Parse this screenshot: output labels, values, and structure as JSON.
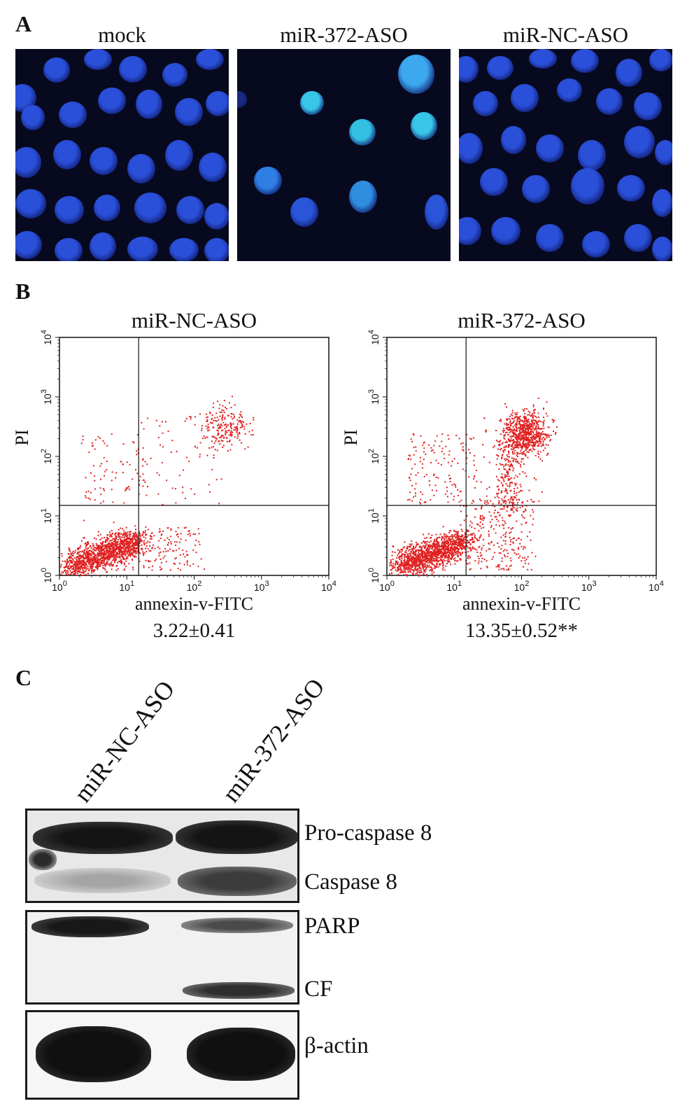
{
  "panels": {
    "a": {
      "letter": "A",
      "titles": [
        "mock",
        "miR-372-ASO",
        "miR-NC-ASO"
      ]
    },
    "b": {
      "letter": "B",
      "plots": [
        {
          "title": "miR-NC-ASO",
          "ylabel": "PI",
          "xlabel": "annexin-v-FITC",
          "value": "3.22±0.41"
        },
        {
          "title": "miR-372-ASO",
          "ylabel": "PI",
          "xlabel": "annexin-v-FITC",
          "value": "13.35±0.52**"
        }
      ]
    },
    "c": {
      "letter": "C",
      "lanes": [
        "miR-NC-ASO",
        "miR-372-ASO"
      ],
      "band_labels": [
        "Pro-caspase 8",
        "Caspase 8",
        "PARP",
        "CF",
        "β-actin"
      ]
    }
  },
  "colors": {
    "nucleus_blue": "#2a4fd8",
    "apoptotic_cyan": "#38c6e8",
    "scatter_red": "#e02020",
    "background_dark": "#07091f"
  },
  "chart_data": [
    {
      "type": "scatter",
      "title": "miR-NC-ASO",
      "xlabel": "annexin-v-FITC",
      "ylabel": "PI",
      "xscale": "log",
      "yscale": "log",
      "xlim": [
        1,
        10000
      ],
      "ylim": [
        1,
        10000
      ],
      "xticks": [
        "10^0",
        "10^1",
        "10^2",
        "10^3",
        "10^4"
      ],
      "yticks": [
        "10^0",
        "10^1",
        "10^2",
        "10^3",
        "10^4"
      ],
      "gate": {
        "x": 15,
        "y": 15
      },
      "apoptosis_percent": "3.22±0.41"
    },
    {
      "type": "scatter",
      "title": "miR-372-ASO",
      "xlabel": "annexin-v-FITC",
      "ylabel": "PI",
      "xscale": "log",
      "yscale": "log",
      "xlim": [
        1,
        10000
      ],
      "ylim": [
        1,
        10000
      ],
      "xticks": [
        "10^0",
        "10^1",
        "10^2",
        "10^3",
        "10^4"
      ],
      "yticks": [
        "10^0",
        "10^1",
        "10^2",
        "10^3",
        "10^4"
      ],
      "gate": {
        "x": 15,
        "y": 15
      },
      "apoptosis_percent": "13.35±0.52**"
    }
  ]
}
